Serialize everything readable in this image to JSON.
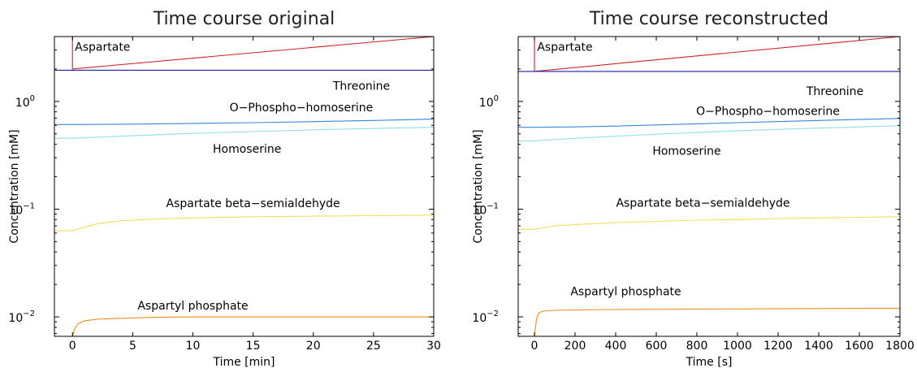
{
  "chart_data": [
    {
      "type": "line",
      "title": "Time course original",
      "xlabel": "Time [min]",
      "ylabel": "Concentration [mM]",
      "yscale": "log",
      "xlim": [
        -1.5,
        30
      ],
      "ylim": [
        0.0066,
        4.0
      ],
      "xticks": [
        0,
        5,
        10,
        15,
        20,
        25,
        30
      ],
      "yticks": [
        {
          "value": 0.01,
          "base": "10",
          "exp": "−2"
        },
        {
          "value": 0.1,
          "base": "10",
          "exp": "−1"
        },
        {
          "value": 1,
          "base": "10",
          "exp": "0"
        }
      ],
      "grid": false,
      "series": [
        {
          "name": "Aspartate",
          "color": "#cc2222",
          "x": [
            -1.5,
            0,
            0,
            30
          ],
          "y": [
            4.0,
            4.0,
            2.0,
            4.0
          ],
          "label_at": [
            2.5,
            2.95
          ]
        },
        {
          "name": "Threonine",
          "color": "#1f1f9f",
          "x": [
            -1.5,
            30
          ],
          "y": [
            1.95,
            1.95
          ],
          "label_at": [
            24,
            1.28
          ]
        },
        {
          "name": "O−Phospho−homoserine",
          "color": "#3a86d9",
          "x": [
            -1.5,
            0,
            5,
            10,
            15,
            20,
            25,
            30
          ],
          "y": [
            0.61,
            0.61,
            0.615,
            0.625,
            0.635,
            0.65,
            0.665,
            0.685
          ],
          "label_at": [
            19,
            0.81
          ]
        },
        {
          "name": "Homoserine",
          "color": "#8fe0ec",
          "x": [
            -1.5,
            0,
            5,
            10,
            15,
            20,
            25,
            30
          ],
          "y": [
            0.455,
            0.455,
            0.48,
            0.505,
            0.525,
            0.545,
            0.56,
            0.575
          ],
          "label_at": [
            14.5,
            0.335
          ]
        },
        {
          "name": "Aspartate beta−semialdehyde",
          "color": "#f2de58",
          "x": [
            -1.5,
            0,
            1,
            2,
            4,
            7,
            10,
            15,
            20,
            25,
            30
          ],
          "y": [
            0.063,
            0.063,
            0.068,
            0.073,
            0.078,
            0.081,
            0.083,
            0.085,
            0.086,
            0.087,
            0.088
          ],
          "label_at": [
            15,
            0.104
          ]
        },
        {
          "name": "Aspartyl phosphate",
          "color": "#f08a1a",
          "x": [
            -1.5,
            0,
            0.2,
            0.5,
            1,
            2,
            4,
            7,
            10,
            15,
            20,
            25,
            30
          ],
          "y": [
            0.0066,
            0.0066,
            0.0079,
            0.0087,
            0.0092,
            0.0095,
            0.0097,
            0.0099,
            0.01,
            0.01,
            0.01,
            0.01,
            0.01
          ],
          "label_at": [
            10,
            0.0117
          ]
        }
      ]
    },
    {
      "type": "line",
      "title": "Time course reconstructed",
      "xlabel": "Time [s]",
      "ylabel": "Concentration [mM]",
      "yscale": "log",
      "xlim": [
        -80,
        1800
      ],
      "ylim": [
        0.0066,
        4.0
      ],
      "xticks": [
        0,
        200,
        400,
        600,
        800,
        1000,
        1200,
        1400,
        1600,
        1800
      ],
      "yticks": [
        {
          "value": 0.01,
          "base": "10",
          "exp": "−2"
        },
        {
          "value": 0.1,
          "base": "10",
          "exp": "−1"
        },
        {
          "value": 1,
          "base": "10",
          "exp": "0"
        }
      ],
      "grid": false,
      "series": [
        {
          "name": "Aspartate",
          "color": "#cc2222",
          "x": [
            -80,
            0,
            0,
            1800
          ],
          "y": [
            4.0,
            4.0,
            1.9,
            4.0
          ],
          "label_at": [
            150,
            2.95
          ]
        },
        {
          "name": "Threonine",
          "color": "#1f1f9f",
          "x": [
            -80,
            1800
          ],
          "y": [
            1.9,
            1.9
          ],
          "label_at": [
            1480,
            1.15
          ]
        },
        {
          "name": "O−Phospho−homoserine",
          "color": "#3a86d9",
          "x": [
            -80,
            0,
            200,
            400,
            600,
            800,
            1000,
            1200,
            1400,
            1600,
            1800
          ],
          "y": [
            0.575,
            0.575,
            0.58,
            0.59,
            0.605,
            0.62,
            0.635,
            0.65,
            0.665,
            0.68,
            0.695
          ],
          "label_at": [
            1150,
            0.75
          ]
        },
        {
          "name": "Homoserine",
          "color": "#8fe0ec",
          "x": [
            -80,
            0,
            200,
            400,
            600,
            800,
            1000,
            1200,
            1400,
            1600,
            1800
          ],
          "y": [
            0.43,
            0.43,
            0.455,
            0.475,
            0.495,
            0.515,
            0.535,
            0.55,
            0.565,
            0.58,
            0.595
          ],
          "label_at": [
            750,
            0.32
          ]
        },
        {
          "name": "Aspartate beta−semialdehyde",
          "color": "#f2de58",
          "x": [
            -80,
            0,
            40,
            100,
            200,
            400,
            600,
            800,
            1000,
            1200,
            1400,
            1600,
            1800
          ],
          "y": [
            0.065,
            0.065,
            0.067,
            0.07,
            0.072,
            0.075,
            0.077,
            0.079,
            0.08,
            0.082,
            0.083,
            0.084,
            0.085
          ],
          "label_at": [
            830,
            0.105
          ]
        },
        {
          "name": "Aspartyl phosphate",
          "color": "#f08a1a",
          "x": [
            -80,
            0,
            10,
            20,
            40,
            100,
            200,
            400,
            800,
            1200,
            1600,
            1800
          ],
          "y": [
            0.0066,
            0.0066,
            0.0095,
            0.0108,
            0.0113,
            0.0115,
            0.0116,
            0.0117,
            0.0118,
            0.0119,
            0.012,
            0.012
          ],
          "label_at": [
            450,
            0.0158
          ]
        }
      ]
    }
  ]
}
